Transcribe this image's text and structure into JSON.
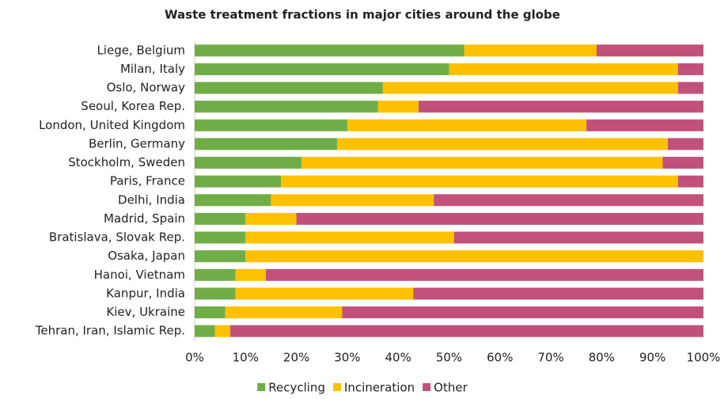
{
  "chart_data": {
    "type": "stacked_bar_horizontal",
    "title": "Waste treatment fractions in major cities around the globe",
    "categories": [
      "Liege, Belgium",
      "Milan, Italy",
      "Oslo, Norway",
      "Seoul, Korea Rep.",
      "London, United Kingdom",
      "Berlin, Germany",
      "Stockholm, Sweden",
      "Paris, France",
      "Delhi, India",
      "Madrid, Spain",
      "Bratislava, Slovak Rep.",
      "Osaka, Japan",
      "Hanoi, Vietnam",
      "Kanpur, India",
      "Kiev, Ukraine",
      "Tehran, Iran, Islamic Rep."
    ],
    "series": [
      {
        "name": "Recycling",
        "color": "#70ad47",
        "values": [
          53,
          50,
          37,
          36,
          30,
          28,
          21,
          17,
          15,
          10,
          10,
          10,
          8,
          8,
          6,
          4
        ]
      },
      {
        "name": "Incineration",
        "color": "#ffc000",
        "values": [
          26,
          45,
          58,
          8,
          47,
          65,
          71,
          78,
          32,
          10,
          41,
          90,
          6,
          35,
          23,
          3
        ]
      },
      {
        "name": "Other",
        "color": "#c1517b",
        "values": [
          21,
          5,
          5,
          56,
          23,
          7,
          8,
          5,
          53,
          80,
          49,
          0,
          86,
          57,
          71,
          93
        ]
      }
    ],
    "xlim": [
      0,
      100
    ],
    "xticks": [
      {
        "value": 0,
        "label": "0%"
      },
      {
        "value": 10,
        "label": "10%"
      },
      {
        "value": 20,
        "label": "20%"
      },
      {
        "value": 30,
        "label": "30%"
      },
      {
        "value": 40,
        "label": "40%"
      },
      {
        "value": 50,
        "label": "50%"
      },
      {
        "value": 60,
        "label": "60%"
      },
      {
        "value": 70,
        "label": "70%"
      },
      {
        "value": 80,
        "label": "80%"
      },
      {
        "value": 90,
        "label": "90%"
      },
      {
        "value": 100,
        "label": "100%"
      }
    ],
    "grid": false,
    "legend": "bottom"
  }
}
